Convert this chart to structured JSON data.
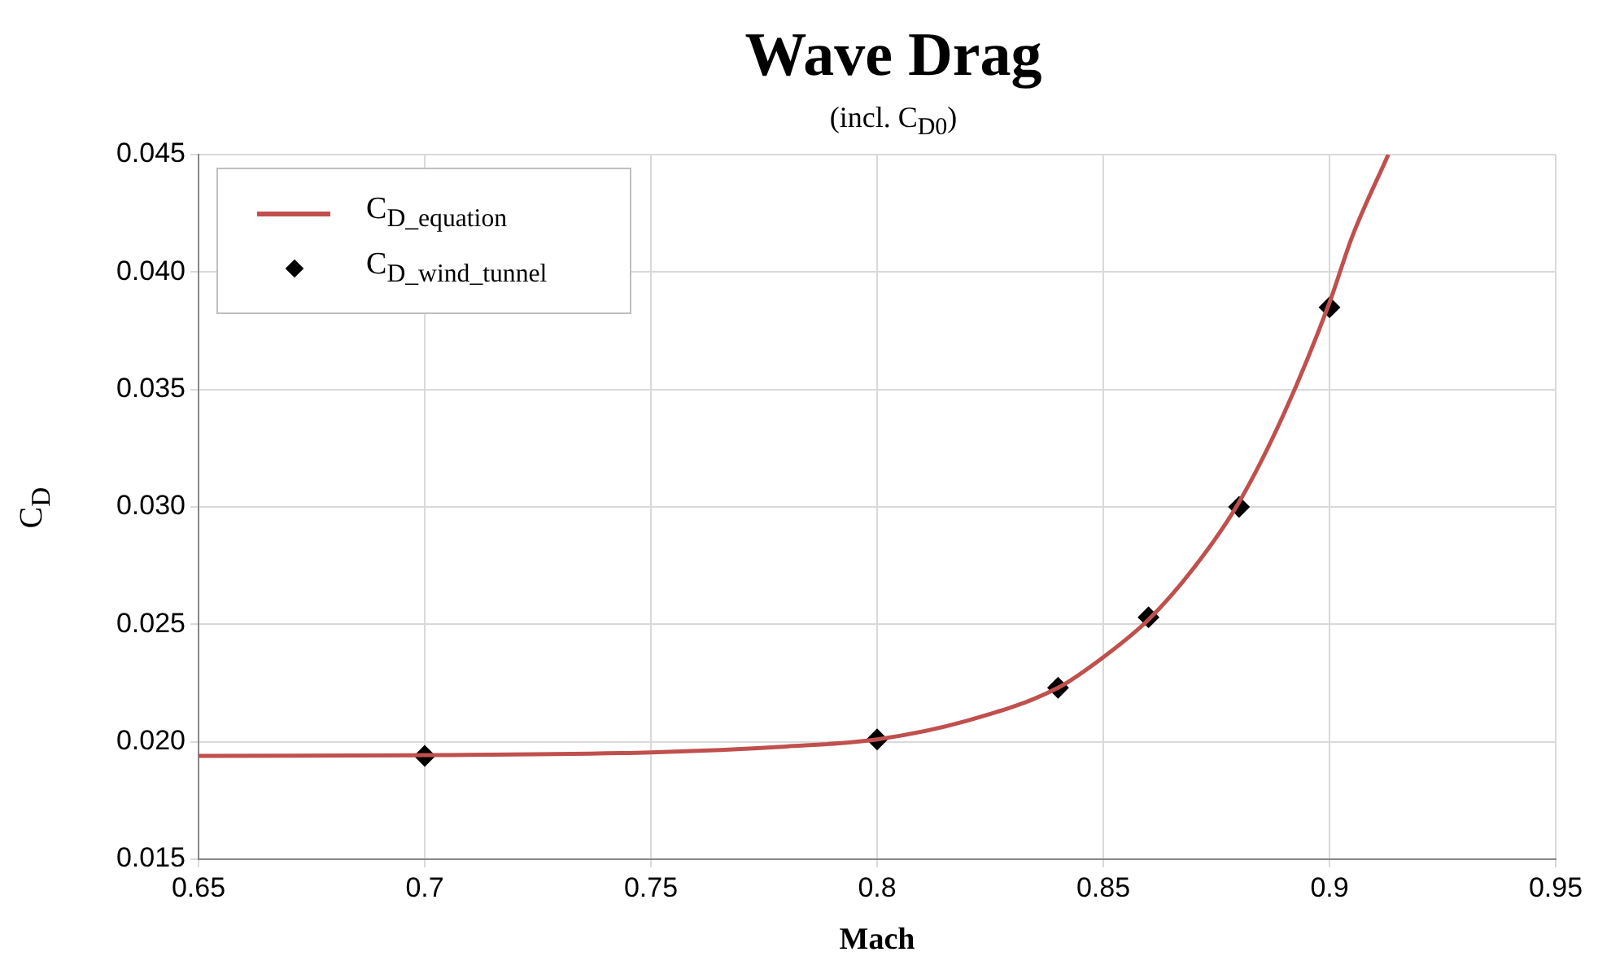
{
  "chart_data": {
    "type": "line",
    "title": "Wave Drag",
    "subtitle": "(incl. C$_{D0}$)",
    "xlabel": "Mach",
    "ylabel": "C$_{D}$",
    "xlim": [
      0.65,
      0.95
    ],
    "xticks": [
      0.65,
      0.7,
      0.75,
      0.8,
      0.85,
      0.9,
      0.95
    ],
    "ylim": [
      0.015,
      0.045
    ],
    "yticks": [
      {
        "value": 0.015,
        "label": "0.015"
      },
      {
        "value": 0.02,
        "label": "0.020"
      },
      {
        "value": 0.025,
        "label": "0.025"
      },
      {
        "value": 0.03,
        "label": "0.030"
      },
      {
        "value": 0.035,
        "label": "0.035"
      },
      {
        "value": 0.04,
        "label": "0.040"
      },
      {
        "value": 0.045,
        "label": "0.045"
      }
    ],
    "grid": true,
    "legend": "top left",
    "series": [
      {
        "name": "C$_{D_equation}$",
        "type": "line",
        "color": "#c0504d",
        "marker": "none",
        "x": [
          0.65,
          0.7,
          0.75,
          0.78,
          0.8,
          0.82,
          0.84,
          0.85,
          0.86,
          0.87,
          0.88,
          0.89,
          0.9,
          0.905,
          0.913
        ],
        "values": [
          0.0194,
          0.01943,
          0.01955,
          0.0198,
          0.0201,
          0.0209,
          0.0223,
          0.0236,
          0.0252,
          0.0274,
          0.0302,
          0.034,
          0.0387,
          0.0415,
          0.045
        ]
      },
      {
        "name": "C$_{D_wind_tunnel}$",
        "type": "scatter",
        "color": "#000000",
        "marker": "diamond",
        "x": [
          0.7,
          0.8,
          0.84,
          0.86,
          0.88,
          0.9
        ],
        "values": [
          0.0194,
          0.0201,
          0.0223,
          0.0253,
          0.03,
          0.0385
        ]
      }
    ]
  }
}
